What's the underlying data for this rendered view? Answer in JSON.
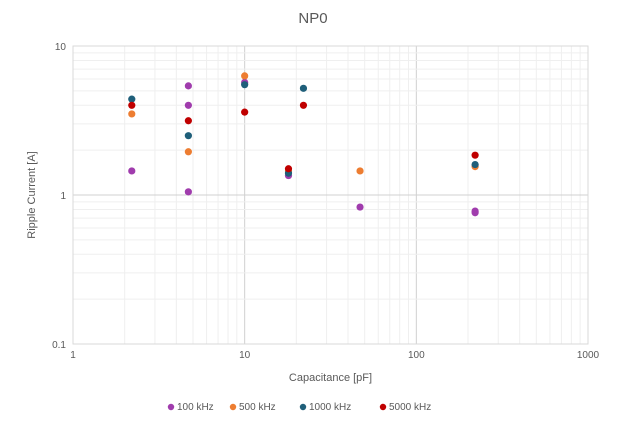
{
  "chart_data": {
    "type": "scatter",
    "title": "NP0",
    "xlabel": "Capacitance [pF]",
    "ylabel": "Ripple Current [A]",
    "x_scale": "log",
    "y_scale": "log",
    "xlim": [
      1,
      1000
    ],
    "ylim": [
      0.1,
      10
    ],
    "x_ticks": [
      "1",
      "10",
      "100",
      "1000"
    ],
    "y_ticks": [
      "0.1",
      "1",
      "10"
    ],
    "grid": true,
    "legend_position": "bottom",
    "series": [
      {
        "name": "100 kHz",
        "color": "#a03cad",
        "points": [
          [
            2.2,
            1.45
          ],
          [
            4.7,
            5.4
          ],
          [
            4.7,
            4.0
          ],
          [
            4.7,
            1.05
          ],
          [
            10,
            5.7
          ],
          [
            18,
            1.35
          ],
          [
            47,
            0.83
          ],
          [
            220,
            0.78
          ],
          [
            220,
            0.76
          ]
        ]
      },
      {
        "name": "500 kHz",
        "color": "#ed7d31",
        "points": [
          [
            2.2,
            3.5
          ],
          [
            4.7,
            1.95
          ],
          [
            10,
            6.3
          ],
          [
            18,
            1.45
          ],
          [
            47,
            1.45
          ],
          [
            220,
            1.55
          ]
        ]
      },
      {
        "name": "1000 kHz",
        "color": "#1f5f7a",
        "points": [
          [
            2.2,
            4.4
          ],
          [
            4.7,
            2.5
          ],
          [
            10,
            5.5
          ],
          [
            18,
            1.4
          ],
          [
            22,
            5.2
          ],
          [
            220,
            1.6
          ]
        ]
      },
      {
        "name": "5000 kHz",
        "color": "#c00000",
        "points": [
          [
            2.2,
            4.0
          ],
          [
            4.7,
            3.15
          ],
          [
            10,
            3.6
          ],
          [
            18,
            1.5
          ],
          [
            22,
            4.0
          ],
          [
            220,
            1.85
          ]
        ]
      }
    ]
  }
}
